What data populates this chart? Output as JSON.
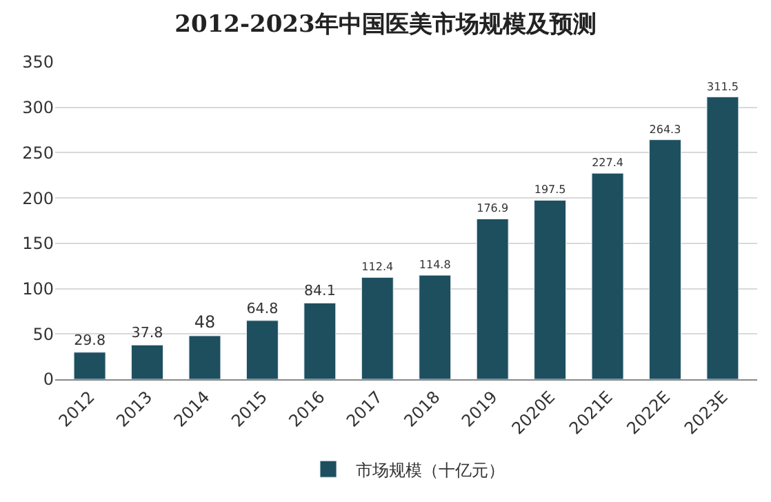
{
  "chart_data": {
    "type": "bar",
    "title": "2012-2023年中国医美市场规模及预测",
    "categories": [
      "2012",
      "2013",
      "2014",
      "2015",
      "2016",
      "2017",
      "2018",
      "2019",
      "2020E",
      "2021E",
      "2022E",
      "2023E"
    ],
    "series": [
      {
        "name": "市场规模（十亿元）",
        "color": "#1d4f5e",
        "values": [
          29.8,
          37.8,
          48,
          64.8,
          84.1,
          112.4,
          114.8,
          176.9,
          197.5,
          227.4,
          264.3,
          311.5
        ]
      }
    ],
    "ylim": [
      0,
      350
    ],
    "yticks": [
      0,
      50,
      100,
      150,
      200,
      250,
      300,
      350
    ],
    "grid": "y",
    "legend": "bottom",
    "data_labels": true
  }
}
